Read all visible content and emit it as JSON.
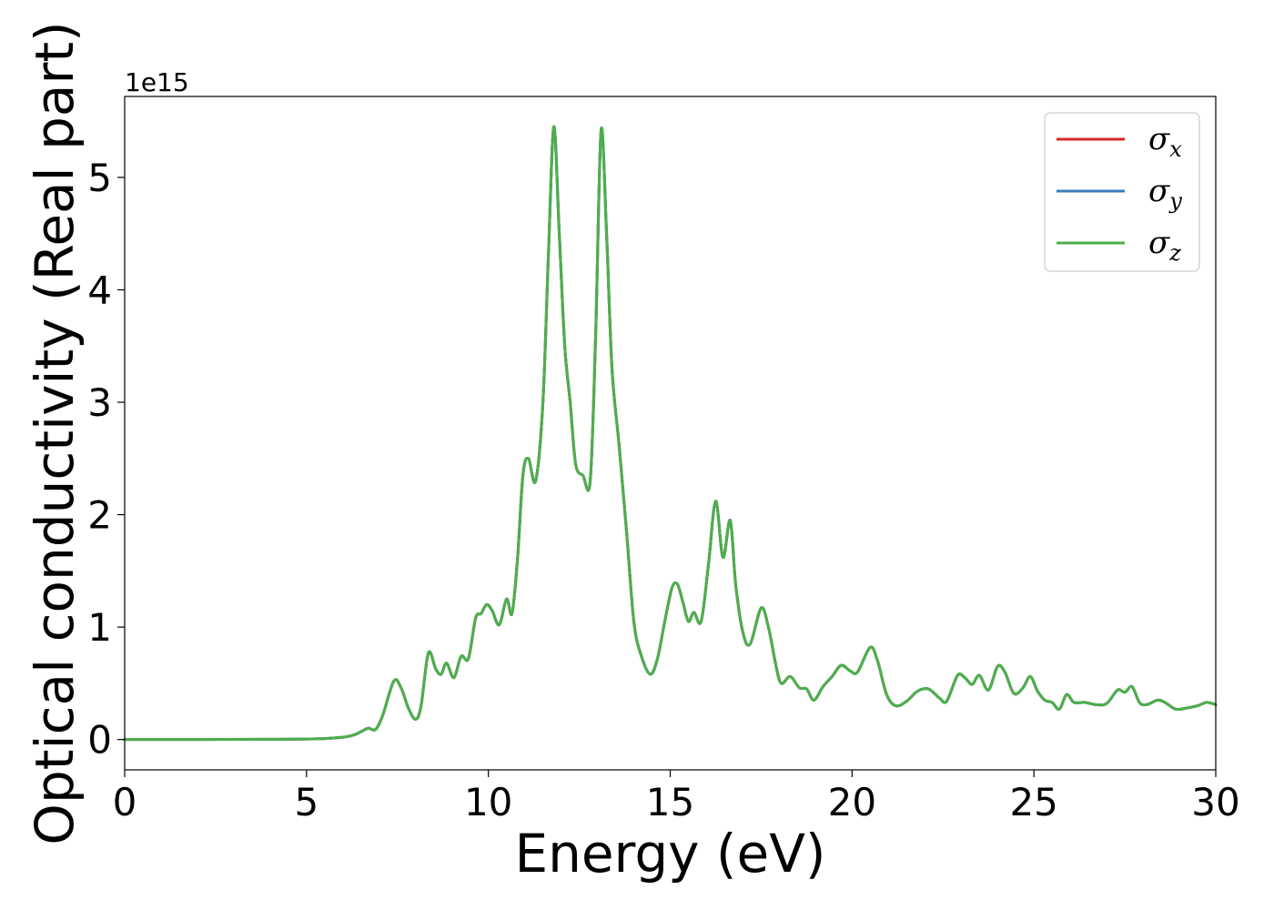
{
  "chart_data": {
    "type": "line",
    "xlabel": "Energy (eV)",
    "ylabel": "Optical conductivity (Real part)",
    "y_offset_label": "1e15",
    "xlim": [
      0,
      30
    ],
    "ylim": [
      -0.27,
      5.72
    ],
    "y_scale_exponent": 15,
    "xticks": [
      0,
      5,
      10,
      15,
      20,
      25,
      30
    ],
    "yticks": [
      0,
      1,
      2,
      3,
      4,
      5
    ],
    "grid": false,
    "legend_position": "top-right",
    "series": [
      {
        "name": "σ",
        "subscript": "x",
        "color": "#d62728",
        "values_ref": "shared"
      },
      {
        "name": "σ",
        "subscript": "y",
        "color": "#3b7dbd",
        "values_ref": "shared"
      },
      {
        "name": "σ",
        "subscript": "z",
        "color": "#4daf4a",
        "values_ref": "shared"
      }
    ],
    "x": [
      0,
      1,
      2,
      3,
      4,
      5,
      5.5,
      6,
      6.3,
      6.5,
      6.7,
      6.9,
      7.1,
      7.4,
      7.6,
      7.8,
      8.0,
      8.15,
      8.35,
      8.55,
      8.7,
      8.85,
      9.05,
      9.25,
      9.45,
      9.65,
      9.8,
      9.95,
      10.1,
      10.3,
      10.5,
      10.65,
      10.8,
      10.95,
      11.1,
      11.3,
      11.5,
      11.65,
      11.8,
      11.95,
      12.1,
      12.25,
      12.4,
      12.6,
      12.8,
      12.95,
      13.1,
      13.25,
      13.4,
      13.6,
      13.8,
      14.0,
      14.2,
      14.45,
      14.65,
      14.85,
      15.05,
      15.2,
      15.35,
      15.5,
      15.65,
      15.85,
      16.05,
      16.25,
      16.45,
      16.65,
      16.8,
      17.0,
      17.2,
      17.5,
      17.7,
      17.9,
      18.05,
      18.3,
      18.55,
      18.75,
      18.95,
      19.2,
      19.45,
      19.7,
      19.95,
      20.15,
      20.5,
      20.7,
      20.95,
      21.2,
      21.5,
      21.8,
      22.1,
      22.4,
      22.6,
      22.9,
      23.1,
      23.3,
      23.5,
      23.75,
      24.0,
      24.2,
      24.45,
      24.7,
      24.9,
      25.1,
      25.3,
      25.5,
      25.7,
      25.9,
      26.1,
      26.4,
      26.7,
      27.0,
      27.3,
      27.5,
      27.7,
      27.9,
      28.1,
      28.4,
      28.6,
      28.9,
      29.2,
      29.5,
      29.75,
      30.0
    ],
    "y": [
      0,
      0,
      0,
      0.001,
      0.002,
      0.004,
      0.008,
      0.02,
      0.04,
      0.07,
      0.1,
      0.09,
      0.22,
      0.52,
      0.46,
      0.28,
      0.18,
      0.3,
      0.77,
      0.63,
      0.58,
      0.68,
      0.55,
      0.74,
      0.72,
      1.08,
      1.12,
      1.2,
      1.15,
      1.02,
      1.25,
      1.12,
      1.6,
      2.35,
      2.5,
      2.3,
      3.0,
      4.3,
      5.45,
      4.5,
      3.5,
      3.0,
      2.45,
      2.35,
      2.3,
      3.6,
      5.42,
      4.5,
      3.3,
      2.6,
      1.85,
      1.05,
      0.75,
      0.58,
      0.72,
      1.05,
      1.35,
      1.38,
      1.22,
      1.05,
      1.13,
      1.05,
      1.55,
      2.12,
      1.62,
      1.95,
      1.38,
      0.95,
      0.85,
      1.17,
      1.0,
      0.67,
      0.5,
      0.56,
      0.46,
      0.45,
      0.35,
      0.47,
      0.56,
      0.66,
      0.61,
      0.6,
      0.82,
      0.7,
      0.4,
      0.3,
      0.34,
      0.43,
      0.45,
      0.37,
      0.34,
      0.57,
      0.55,
      0.49,
      0.57,
      0.44,
      0.65,
      0.6,
      0.41,
      0.46,
      0.56,
      0.43,
      0.35,
      0.33,
      0.27,
      0.4,
      0.33,
      0.33,
      0.31,
      0.32,
      0.44,
      0.42,
      0.47,
      0.33,
      0.31,
      0.35,
      0.33,
      0.27,
      0.28,
      0.3,
      0.33,
      0.31
    ]
  }
}
